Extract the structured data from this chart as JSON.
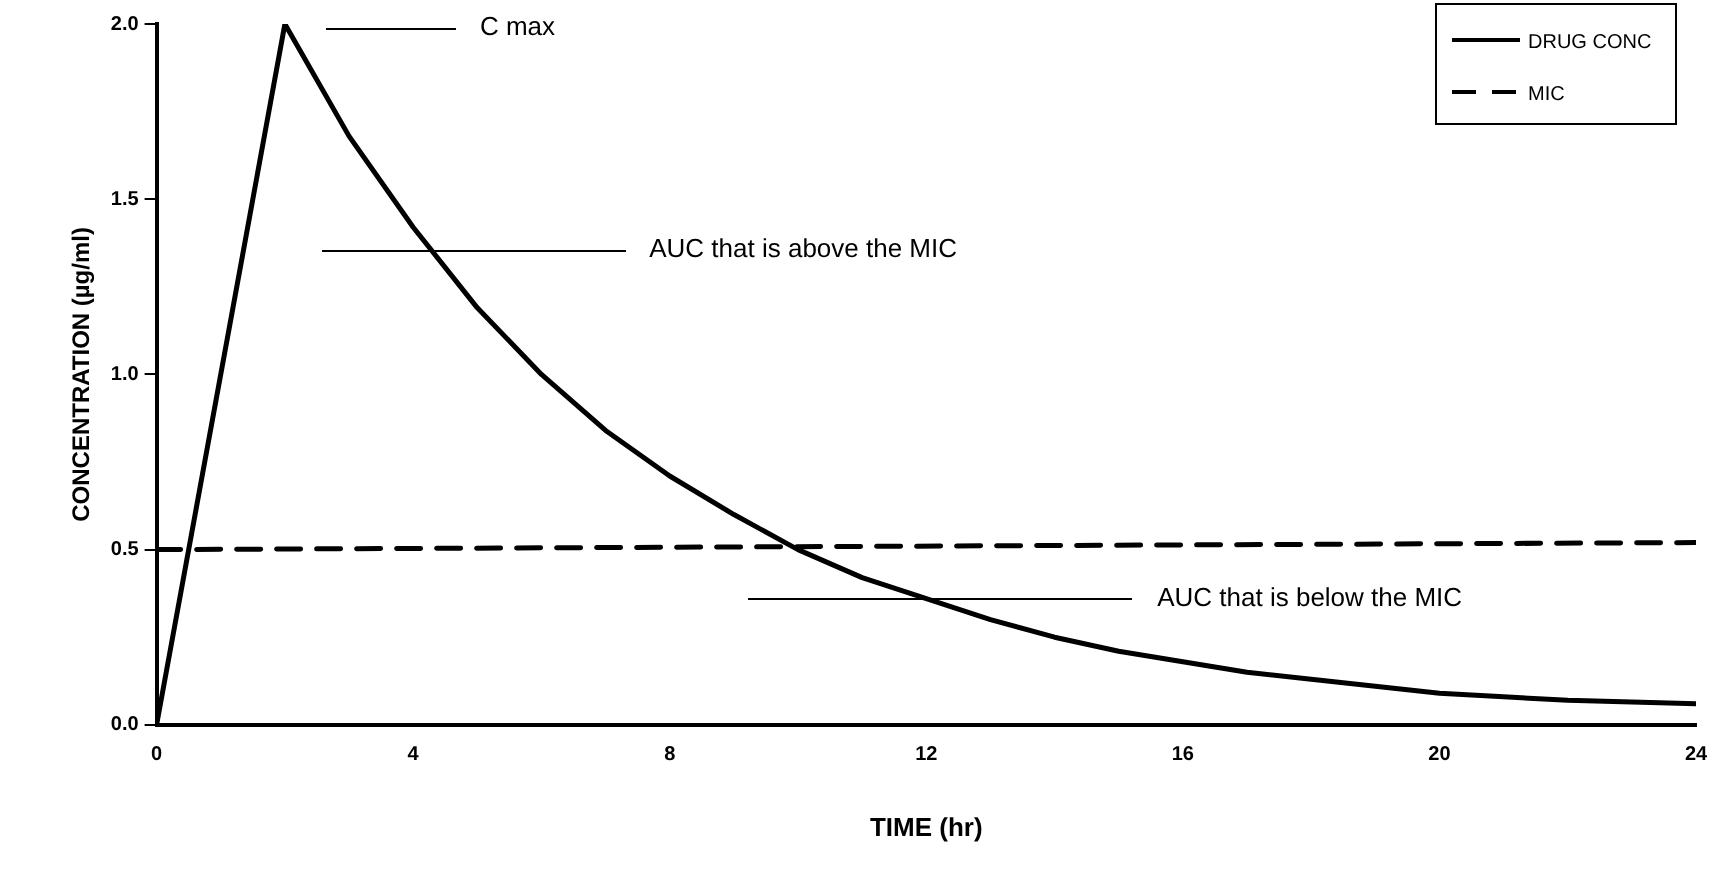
{
  "chart_data": {
    "type": "line",
    "xlabel": "TIME (hr)",
    "ylabel": "CONCENTRATION (µg/ml)",
    "xlim": [
      0,
      24
    ],
    "xticks": [
      0,
      4,
      8,
      12,
      16,
      20,
      24
    ],
    "ylim": [
      0,
      2
    ],
    "yticks": [
      {
        "value": 0,
        "label": "0.0"
      },
      {
        "value": 0.5,
        "label": "0.5"
      },
      {
        "value": 1,
        "label": "1.0"
      },
      {
        "value": 1.5,
        "label": "1.5"
      },
      {
        "value": 2,
        "label": "2.0"
      }
    ],
    "series": [
      {
        "name": "DRUG CONC",
        "color": "#000000",
        "line_style": "solid",
        "x": [
          0,
          2,
          3,
          4,
          5,
          6,
          7,
          8,
          9,
          10,
          11,
          12,
          13,
          14,
          15,
          16,
          17,
          18,
          19,
          20,
          21,
          22,
          23,
          24
        ],
        "values": [
          0,
          2.0,
          1.68,
          1.42,
          1.19,
          1.0,
          0.84,
          0.71,
          0.6,
          0.5,
          0.42,
          0.36,
          0.3,
          0.25,
          0.21,
          0.18,
          0.15,
          0.13,
          0.11,
          0.09,
          0.08,
          0.07,
          0.065,
          0.06
        ]
      },
      {
        "name": "MIC",
        "color": "#000000",
        "line_style": "dashed",
        "x": [
          0,
          24
        ],
        "values": [
          0.5,
          0.52
        ]
      }
    ],
    "annotations": [
      "C max",
      "AUC that is above the MIC",
      "AUC that is below the MIC"
    ],
    "legend": "top right",
    "grid": false,
    "marker": "none"
  }
}
